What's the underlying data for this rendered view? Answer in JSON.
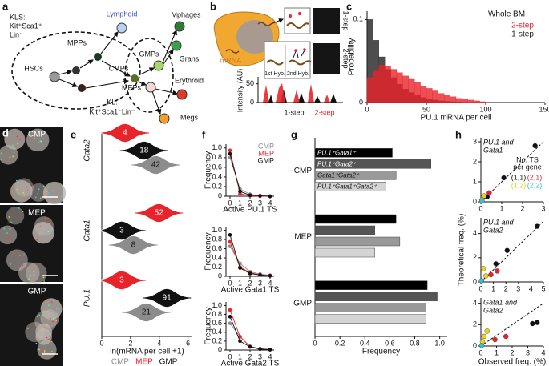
{
  "diagram": {
    "a": {
      "label": "a",
      "kls": [
        "KLS:",
        "Kit⁺Sca1⁺",
        "Lin⁻"
      ],
      "nodes": {
        "mpps": "MPPs",
        "hscs": "HSCs",
        "cmps": "CMPs",
        "gmps": "GMPs",
        "meps": "MEPs",
        "lymphoid": "Lymphoid",
        "mphages": "Mphages",
        "grans": "Grans",
        "erythroid": "Erythroid",
        "megs": "Megs"
      },
      "kl": [
        "KL:",
        "Kit⁺Sca1⁻Lin⁻"
      ]
    },
    "b": {
      "label": "b",
      "mrna": "mRNA",
      "hyb1": "1st Hyb.",
      "hyb2": "2nd Hyb.",
      "step1": "1-step",
      "step2": "2-step",
      "intensity": {
        "ylabel": "Intensity (AU)",
        "ylim": [
          0,
          60
        ],
        "yticks": [
          0,
          50
        ]
      }
    },
    "d": {
      "label": "d",
      "images": [
        "CMP",
        "MEP",
        "GMP"
      ]
    }
  },
  "chart_data": [
    {
      "type": "histogram",
      "label": "c",
      "title": "Whole BM",
      "xlabel": "PU.1 mRNA per cell",
      "ylabel": "Probability",
      "bins": [
        0,
        5,
        10,
        15,
        20,
        25,
        30,
        35,
        40,
        45,
        50,
        55,
        60,
        65,
        70,
        75,
        80,
        85,
        90,
        95,
        100
      ],
      "series": [
        {
          "name": "2-step",
          "color": "#e8232a",
          "values": [
            0.03,
            0.038,
            0.045,
            0.044,
            0.04,
            0.036,
            0.032,
            0.028,
            0.024,
            0.02,
            0.017,
            0.014,
            0.011,
            0.009,
            0.007,
            0.005,
            0.004,
            0.003,
            0.002,
            0.001
          ]
        },
        {
          "name": "1-step",
          "color": "#222222",
          "values": [
            0.1,
            0.075,
            0.055,
            0.04,
            0.03,
            0.022,
            0.016,
            0.012,
            0.009,
            0.006,
            0.004,
            0.003,
            0.002,
            0.0015,
            0.001,
            0.0008,
            0.0005,
            0.0003,
            0.0002,
            0.0001
          ]
        }
      ],
      "xlim": [
        0,
        150
      ],
      "xticks": [
        0,
        50,
        100,
        150
      ],
      "ylim": [
        0,
        0.11
      ],
      "yticks": [
        0,
        0.1
      ]
    },
    {
      "type": "violin",
      "label": "e",
      "xlabel": "ln(mRNA per cell +1)",
      "categories": [
        "Gata2",
        "Gata1",
        "PU.1"
      ],
      "series": [
        {
          "name": "CMP",
          "color": "#8c8c8c",
          "values": [
            42,
            8,
            21
          ]
        },
        {
          "name": "MEP",
          "color": "#e8232a",
          "values": [
            4,
            52,
            3
          ]
        },
        {
          "name": "GMP",
          "color": "#111111",
          "values": [
            18,
            3,
            91
          ]
        }
      ],
      "xlim": [
        0,
        6.3
      ],
      "xticks": [
        0,
        2,
        4,
        6
      ]
    },
    {
      "type": "line",
      "label": "f",
      "xlabel": "Active PU.1 TS",
      "ylabel": "Frequency",
      "x": [
        0,
        1,
        2,
        3,
        4
      ],
      "series": [
        {
          "name": "CMP",
          "color": "#8c8c8c",
          "values": [
            0.8,
            0.15,
            0.04,
            0.01,
            0
          ]
        },
        {
          "name": "MEP",
          "color": "#e8232a",
          "values": [
            0.95,
            0.05,
            0.01,
            0,
            0
          ]
        },
        {
          "name": "GMP",
          "color": "#111111",
          "values": [
            0.88,
            0.1,
            0.02,
            0.01,
            0
          ]
        }
      ],
      "xlim": [
        -0.4,
        4.4
      ],
      "xticks": [
        0,
        1,
        2,
        3,
        4
      ],
      "ylim": [
        0,
        1.08
      ],
      "yticks": [
        0,
        0.2,
        0.4,
        0.6,
        0.8,
        {
          "value": 1,
          "label": "1.0"
        }
      ]
    },
    {
      "type": "line",
      "xlabel": "Active Gata1 TS",
      "ylabel": "Frequency",
      "x": [
        0,
        1,
        2,
        3,
        4
      ],
      "series": [
        {
          "color": "#8c8c8c",
          "values": [
            0.65,
            0.28,
            0.1,
            0.05,
            0.02
          ]
        },
        {
          "color": "#e8232a",
          "values": [
            0.75,
            0.2,
            0.08,
            0.03,
            0.02
          ]
        },
        {
          "color": "#111111",
          "values": [
            0.9,
            0.18,
            0.06,
            0.03,
            0.01
          ]
        }
      ],
      "xlim": [
        -0.4,
        4.4
      ],
      "xticks": [
        0,
        1,
        2,
        3,
        4
      ],
      "ylim": [
        0,
        1.08
      ],
      "yticks": [
        0,
        0.2,
        0.4,
        0.6,
        0.8,
        {
          "value": 1,
          "label": "1.0"
        }
      ]
    },
    {
      "type": "line",
      "xlabel": "Active Gata2 TS",
      "ylabel": "Frequency",
      "x": [
        0,
        1,
        2,
        3,
        4
      ],
      "series": [
        {
          "color": "#8c8c8c",
          "values": [
            0.6,
            0.3,
            0.08,
            0.03,
            0.01
          ]
        },
        {
          "color": "#e8232a",
          "values": [
            0.9,
            0.3,
            0.08,
            0.03,
            0.01
          ]
        },
        {
          "color": "#111111",
          "values": [
            0.75,
            0.2,
            0.07,
            0.02,
            0.01
          ]
        }
      ],
      "xlim": [
        -0.4,
        4.4
      ],
      "xticks": [
        0,
        1,
        2,
        3,
        4
      ],
      "ylim": [
        0,
        1.08
      ],
      "yticks": [
        0,
        0.2,
        0.4,
        0.6,
        0.8,
        {
          "value": 1,
          "label": "1.0"
        }
      ]
    },
    {
      "type": "hbar",
      "label": "g",
      "xlabel": "Frequency",
      "categories": [
        "CMP",
        "MEP",
        "GMP"
      ],
      "series": [
        {
          "name": "PU.1⁺Gata1⁺",
          "color": "#000000",
          "values": [
            0.62,
            0.65,
            0.9
          ]
        },
        {
          "name": "PU.1⁺Gata2⁺",
          "color": "#555555",
          "values": [
            0.93,
            0.48,
            0.98
          ]
        },
        {
          "name": "Gata1⁺Gata2⁺",
          "color": "#999999",
          "values": [
            0.65,
            0.68,
            0.89
          ]
        },
        {
          "name": "PU.1⁺Gata1⁺Gata2⁺",
          "color": "#d4d4d4",
          "values": [
            0.57,
            0.48,
            0.89
          ]
        }
      ],
      "xlim": [
        0,
        1.06
      ],
      "xticks": [
        0,
        0.2,
        0.4,
        0.6,
        0.8,
        {
          "value": 1,
          "label": "1.0"
        }
      ]
    },
    {
      "type": "scatter",
      "label": "h",
      "subtitle": [
        "PU.1 and",
        "Gata1"
      ],
      "legend_title": [
        "No. TS",
        "per gene"
      ],
      "series": [
        {
          "name": "(1,1)",
          "color": "#111111",
          "x": [
            2.6,
            1.1,
            0.3
          ],
          "values": [
            2.8,
            1.2,
            0.25
          ]
        },
        {
          "name": "(2,1)",
          "color": "#e8232a",
          "x": [
            0.4
          ],
          "values": [
            0.45
          ]
        },
        {
          "name": "(1,2)",
          "color": "#f2cf1d",
          "x": [
            0.15,
            0.05
          ],
          "values": [
            0.3,
            0.1
          ]
        },
        {
          "name": "(2,2)",
          "color": "#29c4e0",
          "x": [
            0.05
          ],
          "values": [
            0.05
          ]
        }
      ],
      "xlim": [
        0,
        3
      ],
      "xticks": [
        0,
        1,
        2,
        3
      ],
      "ylim": [
        0,
        3.2
      ],
      "yticks": [
        0,
        1,
        2,
        3
      ]
    },
    {
      "type": "scatter",
      "subtitle": [
        "PU.1 and",
        "Gata2"
      ],
      "ylabel": "Theoretical freq. (%)",
      "series": [
        {
          "color": "#111111",
          "x": [
            4.5,
            2.1,
            1.2
          ],
          "values": [
            4.6,
            2.6,
            1.5
          ]
        },
        {
          "color": "#e8232a",
          "x": [
            0.8,
            1.3
          ],
          "values": [
            0.6,
            0.9
          ]
        },
        {
          "color": "#f2cf1d",
          "x": [
            0.2,
            0.4
          ],
          "values": [
            1.1,
            0.5
          ]
        },
        {
          "color": "#29c4e0",
          "x": [
            0.05
          ],
          "values": [
            0.1
          ]
        }
      ],
      "xlim": [
        0,
        5
      ],
      "xticks": [
        0,
        1,
        2,
        3,
        4,
        5
      ],
      "ylim": [
        0,
        5.3
      ],
      "yticks": [
        0,
        2,
        4
      ]
    },
    {
      "type": "scatter",
      "subtitle": [
        "Gata1 and",
        "Gata2"
      ],
      "xlabel": "Observed freq. (%)",
      "series": [
        {
          "color": "#111111",
          "x": [
            3.3,
            3.6
          ],
          "values": [
            2.1,
            2.2
          ]
        },
        {
          "color": "#e8232a",
          "x": [
            0.9,
            1.6
          ],
          "values": [
            0.6,
            0.9
          ]
        },
        {
          "color": "#f2cf1d",
          "x": [
            0.2,
            0.4,
            0.1
          ],
          "values": [
            0.9,
            1.4,
            0.4
          ]
        },
        {
          "color": "#29c4e0",
          "x": [
            0.05
          ],
          "values": [
            0.05
          ]
        }
      ],
      "xlim": [
        0,
        4
      ],
      "xticks": [
        0,
        1,
        2,
        3,
        4
      ],
      "ylim": [
        0,
        4.5
      ],
      "yticks": [
        0,
        2,
        4
      ]
    }
  ]
}
